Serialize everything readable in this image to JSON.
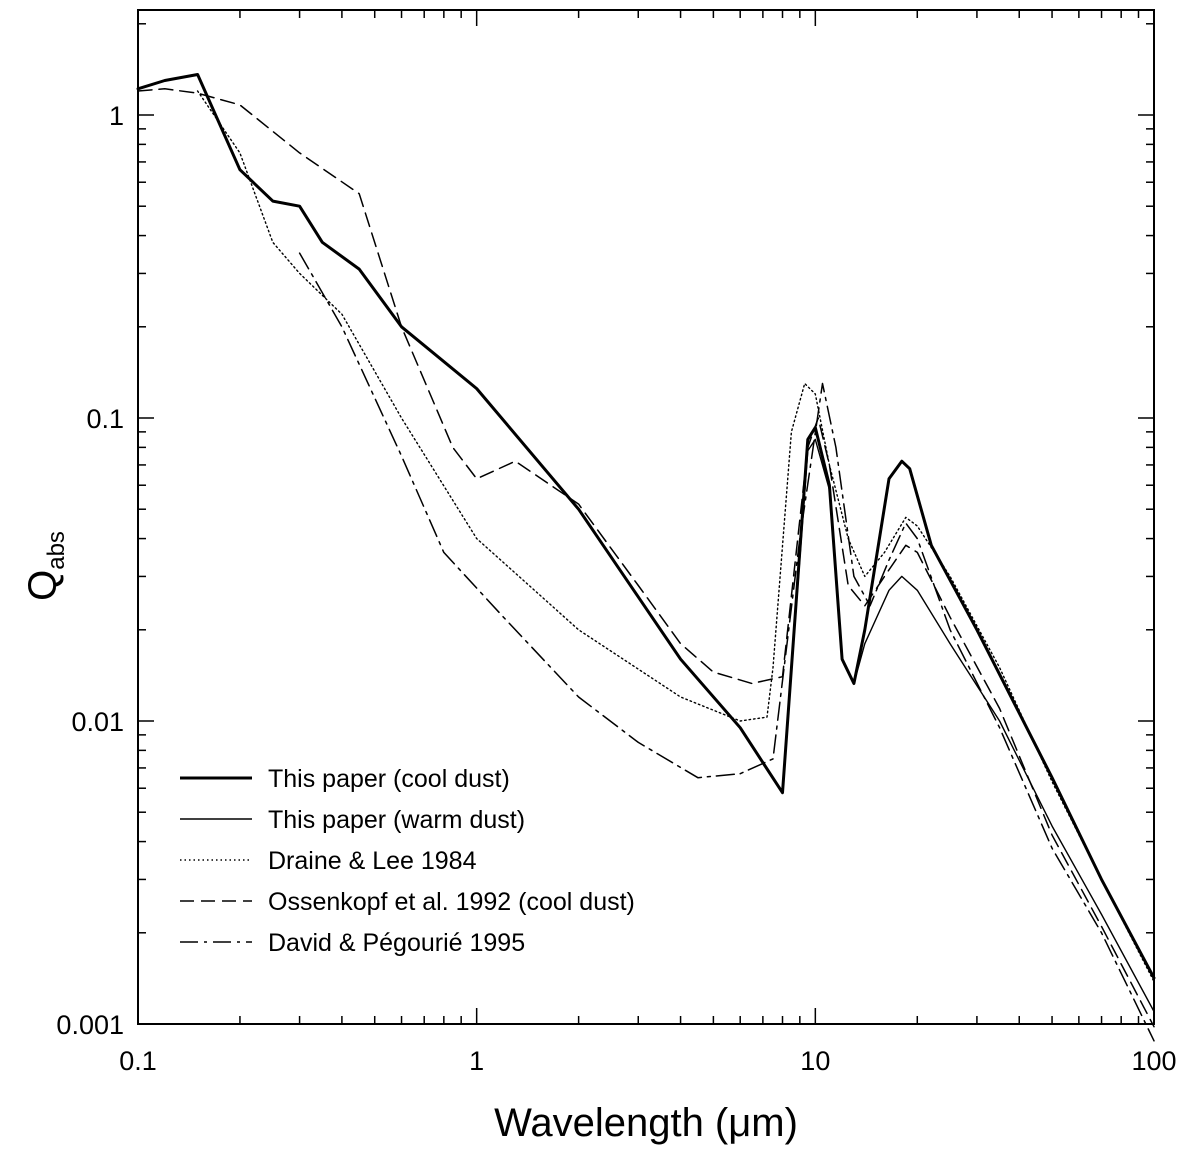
{
  "chart_data": {
    "type": "line",
    "xlabel": "Wavelength (μm)",
    "ylabel_main": "Q",
    "ylabel_sub": "abs",
    "xscale": "log",
    "yscale": "log",
    "xlim": [
      0.1,
      100
    ],
    "ylim": [
      0.001,
      2
    ],
    "grid": false,
    "legend_position": "bottom-left",
    "x_major_ticks": [
      0.1,
      1,
      10,
      100
    ],
    "x_major_tick_labels": [
      "0.1",
      "1",
      "10",
      "100"
    ],
    "y_major_ticks": [
      0.001,
      0.01,
      0.1,
      1
    ],
    "y_major_tick_labels": [
      "0.001",
      "0.01",
      "0.1",
      "1"
    ],
    "series": [
      {
        "name": "This paper (cool dust)",
        "style": "solid-thick",
        "points": [
          [
            0.1,
            1.22
          ],
          [
            0.12,
            1.3
          ],
          [
            0.15,
            1.36
          ],
          [
            0.2,
            0.66
          ],
          [
            0.25,
            0.52
          ],
          [
            0.3,
            0.5
          ],
          [
            0.35,
            0.38
          ],
          [
            0.45,
            0.31
          ],
          [
            0.6,
            0.2
          ],
          [
            1.0,
            0.125
          ],
          [
            2.0,
            0.05
          ],
          [
            4.0,
            0.016
          ],
          [
            6.0,
            0.0095
          ],
          [
            8.0,
            0.0058
          ],
          [
            9.5,
            0.085
          ],
          [
            10.0,
            0.093
          ],
          [
            11.0,
            0.06
          ],
          [
            12.0,
            0.016
          ],
          [
            13.0,
            0.0133
          ],
          [
            14.0,
            0.02
          ],
          [
            16.5,
            0.063
          ],
          [
            18.0,
            0.072
          ],
          [
            19.0,
            0.068
          ],
          [
            22.0,
            0.038
          ],
          [
            30.0,
            0.02
          ],
          [
            50.0,
            0.0065
          ],
          [
            70.0,
            0.003
          ],
          [
            100.0,
            0.00142
          ]
        ]
      },
      {
        "name": "This paper (warm dust)",
        "style": "solid-thin",
        "points": [
          [
            0.1,
            1.22
          ],
          [
            0.12,
            1.3
          ],
          [
            0.15,
            1.36
          ],
          [
            0.2,
            0.66
          ],
          [
            0.25,
            0.52
          ],
          [
            0.3,
            0.5
          ],
          [
            0.35,
            0.38
          ],
          [
            0.45,
            0.31
          ],
          [
            0.6,
            0.2
          ],
          [
            1.0,
            0.125
          ],
          [
            2.0,
            0.05
          ],
          [
            4.0,
            0.016
          ],
          [
            6.0,
            0.0095
          ],
          [
            8.0,
            0.0058
          ],
          [
            9.5,
            0.078
          ],
          [
            10.0,
            0.085
          ],
          [
            11.0,
            0.058
          ],
          [
            12.0,
            0.016
          ],
          [
            13.0,
            0.0133
          ],
          [
            14.0,
            0.018
          ],
          [
            16.5,
            0.027
          ],
          [
            18.0,
            0.03
          ],
          [
            20.0,
            0.027
          ],
          [
            25.0,
            0.018
          ],
          [
            35.0,
            0.01
          ],
          [
            50.0,
            0.0045
          ],
          [
            70.0,
            0.0023
          ],
          [
            100.0,
            0.0011
          ]
        ]
      },
      {
        "name": "Draine & Lee 1984",
        "style": "dotted",
        "points": [
          [
            0.15,
            1.2
          ],
          [
            0.2,
            0.75
          ],
          [
            0.25,
            0.38
          ],
          [
            0.3,
            0.3
          ],
          [
            0.4,
            0.22
          ],
          [
            0.6,
            0.1
          ],
          [
            1.0,
            0.04
          ],
          [
            2.0,
            0.02
          ],
          [
            4.0,
            0.012
          ],
          [
            6.0,
            0.01
          ],
          [
            7.2,
            0.0103
          ],
          [
            7.5,
            0.015
          ],
          [
            8.5,
            0.09
          ],
          [
            9.3,
            0.13
          ],
          [
            10.0,
            0.12
          ],
          [
            11.0,
            0.07
          ],
          [
            12.5,
            0.04
          ],
          [
            14.0,
            0.03
          ],
          [
            16.0,
            0.036
          ],
          [
            18.5,
            0.047
          ],
          [
            20.0,
            0.044
          ],
          [
            25.0,
            0.03
          ],
          [
            35.0,
            0.015
          ],
          [
            50.0,
            0.0063
          ],
          [
            70.0,
            0.003
          ],
          [
            100.0,
            0.00138
          ]
        ]
      },
      {
        "name": "Ossenkopf et al. 1992 (cool dust)",
        "style": "dashed",
        "points": [
          [
            0.1,
            1.2
          ],
          [
            0.12,
            1.22
          ],
          [
            0.15,
            1.18
          ],
          [
            0.2,
            1.08
          ],
          [
            0.3,
            0.75
          ],
          [
            0.45,
            0.55
          ],
          [
            0.6,
            0.2
          ],
          [
            0.85,
            0.08
          ],
          [
            1.0,
            0.063
          ],
          [
            1.3,
            0.072
          ],
          [
            2.0,
            0.052
          ],
          [
            3.0,
            0.028
          ],
          [
            4.0,
            0.018
          ],
          [
            5.0,
            0.0145
          ],
          [
            6.5,
            0.0133
          ],
          [
            8.0,
            0.014
          ],
          [
            9.5,
            0.08
          ],
          [
            10.2,
            0.1
          ],
          [
            11.0,
            0.07
          ],
          [
            12.5,
            0.028
          ],
          [
            14.0,
            0.024
          ],
          [
            16.0,
            0.03
          ],
          [
            18.5,
            0.038
          ],
          [
            20.0,
            0.036
          ],
          [
            25.0,
            0.022
          ],
          [
            35.0,
            0.011
          ],
          [
            50.0,
            0.0042
          ],
          [
            70.0,
            0.0021
          ],
          [
            100.0,
            0.00098
          ]
        ]
      },
      {
        "name": "David & Pégourié 1995",
        "style": "dash-dot",
        "points": [
          [
            0.3,
            0.35
          ],
          [
            0.4,
            0.2
          ],
          [
            0.6,
            0.075
          ],
          [
            0.8,
            0.036
          ],
          [
            1.2,
            0.022
          ],
          [
            2.0,
            0.012
          ],
          [
            3.0,
            0.0085
          ],
          [
            4.5,
            0.0065
          ],
          [
            6.0,
            0.0067
          ],
          [
            7.5,
            0.0075
          ],
          [
            9.0,
            0.04
          ],
          [
            10.5,
            0.13
          ],
          [
            11.5,
            0.08
          ],
          [
            13.0,
            0.03
          ],
          [
            14.5,
            0.024
          ],
          [
            16.5,
            0.034
          ],
          [
            18.5,
            0.045
          ],
          [
            20.0,
            0.04
          ],
          [
            25.0,
            0.02
          ],
          [
            35.0,
            0.0095
          ],
          [
            50.0,
            0.0038
          ],
          [
            70.0,
            0.002
          ],
          [
            100.0,
            0.00088
          ]
        ]
      }
    ]
  }
}
